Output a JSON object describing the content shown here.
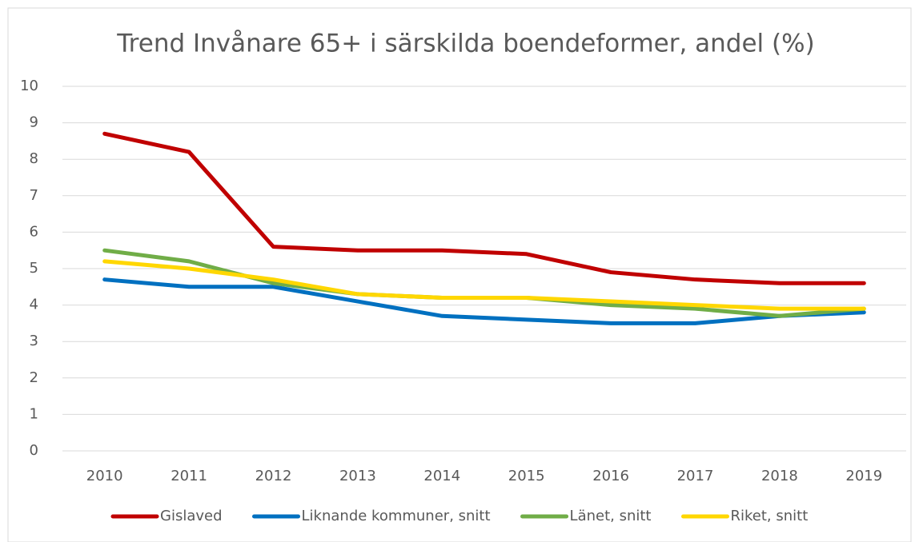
{
  "chart_data": {
    "type": "line",
    "title": "Trend Invånare 65+ i särskilda boendeformer, andel (%)",
    "categories": [
      "2010",
      "2011",
      "2012",
      "2013",
      "2014",
      "2015",
      "2016",
      "2017",
      "2018",
      "2019"
    ],
    "series": [
      {
        "name": "Gislaved",
        "color": "#c00000",
        "values": [
          8.7,
          8.2,
          5.6,
          5.5,
          5.5,
          5.4,
          4.9,
          4.7,
          4.6,
          4.6
        ]
      },
      {
        "name": "Liknande kommuner, snitt",
        "color": "#0070c0",
        "values": [
          4.7,
          4.5,
          4.5,
          4.1,
          3.7,
          3.6,
          3.5,
          3.5,
          3.7,
          3.8
        ]
      },
      {
        "name": "Länet, snitt",
        "color": "#70ad47",
        "values": [
          5.5,
          5.2,
          4.6,
          4.3,
          4.2,
          4.2,
          4.0,
          3.9,
          3.7,
          3.9
        ]
      },
      {
        "name": "Riket, snitt",
        "color": "#ffd700",
        "values": [
          5.2,
          5.0,
          4.7,
          4.3,
          4.2,
          4.2,
          4.1,
          4.0,
          3.9,
          3.9
        ]
      }
    ],
    "ylim": [
      0,
      10
    ],
    "yticks": [
      0,
      1,
      2,
      3,
      4,
      5,
      6,
      7,
      8,
      9,
      10
    ],
    "grid": true,
    "legend": "bottom"
  }
}
